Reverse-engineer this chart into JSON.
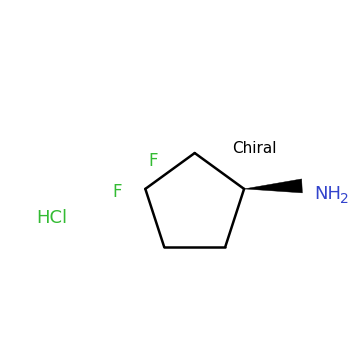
{
  "background_color": "#ffffff",
  "chiral_label": "Chiral",
  "chiral_color": "#000000",
  "chiral_fontsize": 11,
  "hcl_label": "HCl",
  "hcl_color": "#33bb33",
  "hcl_fontsize": 13,
  "nh2_label": "NH",
  "nh2_sub": "2",
  "nh2_color": "#3344cc",
  "nh2_fontsize": 13,
  "f1_label": "F",
  "f1_color": "#33bb33",
  "f1_fontsize": 12,
  "f2_label": "F",
  "f2_color": "#33bb33",
  "f2_fontsize": 12,
  "ring_color": "#000000",
  "ring_linewidth": 1.8
}
